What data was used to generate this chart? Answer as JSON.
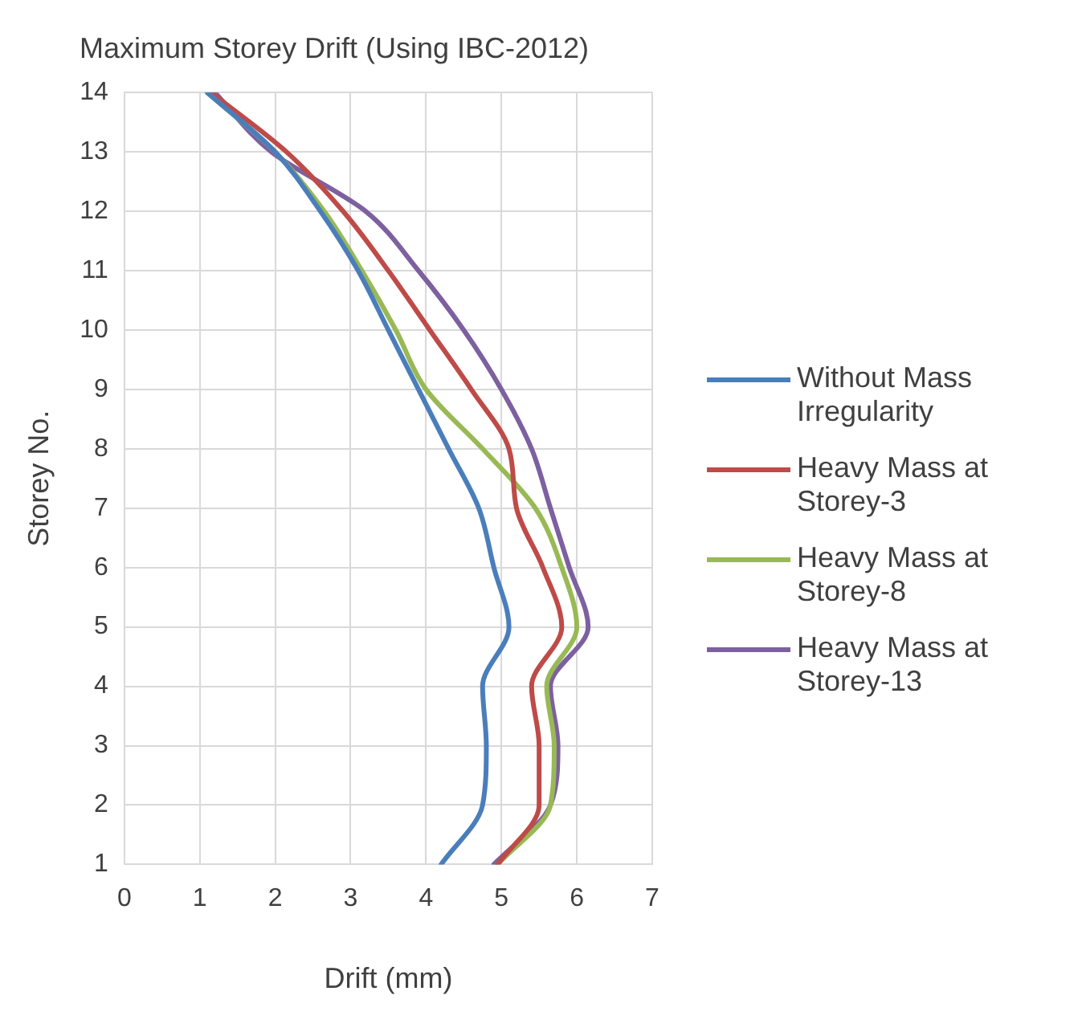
{
  "chart_data": {
    "type": "line",
    "title": "Maximum Storey Drift (Using IBC-2012)",
    "xlabel": "Drift (mm)",
    "ylabel": "Storey No.",
    "xlim": [
      0,
      7
    ],
    "xticks": [
      0,
      1,
      2,
      3,
      4,
      5,
      6,
      7
    ],
    "ylim": [
      1,
      14
    ],
    "yticks": [
      1,
      2,
      3,
      4,
      5,
      6,
      7,
      8,
      9,
      10,
      11,
      12,
      13,
      14
    ],
    "grid": true,
    "legend": "right",
    "marker": "none",
    "line_style": "solid",
    "series": [
      {
        "name": "Without Mass Irregularity",
        "color": "#4a7ebb",
        "x": [
          4.2,
          4.75,
          4.8,
          4.75,
          5.1,
          4.9,
          4.7,
          4.3,
          3.9,
          3.5,
          3.1,
          2.6,
          2.0,
          1.1
        ],
        "values": [
          1,
          2,
          3,
          4,
          5,
          6,
          7,
          8,
          9,
          10,
          11,
          12,
          13,
          14
        ]
      },
      {
        "name": "Heavy Mass at Storey-3",
        "color": "#be4b48",
        "x": [
          4.95,
          5.5,
          5.5,
          5.4,
          5.8,
          5.55,
          5.2,
          5.1,
          4.6,
          4.05,
          3.5,
          2.9,
          2.15,
          1.15
        ],
        "values": [
          1,
          2,
          3,
          4,
          5,
          6,
          7,
          8,
          9,
          10,
          11,
          12,
          13,
          14
        ]
      },
      {
        "name": "Heavy Mass at Storey-8",
        "color": "#98b954",
        "x": [
          4.95,
          5.65,
          5.7,
          5.6,
          6.0,
          5.8,
          5.45,
          4.75,
          4.0,
          3.6,
          3.15,
          2.65,
          2.0,
          1.1
        ],
        "values": [
          1,
          2,
          3,
          4,
          5,
          6,
          7,
          8,
          9,
          10,
          11,
          12,
          13,
          14
        ]
      },
      {
        "name": "Heavy Mass at Storey-13",
        "color": "#7d60a0",
        "x": [
          4.9,
          5.65,
          5.75,
          5.65,
          6.15,
          5.9,
          5.65,
          5.4,
          5.0,
          4.5,
          3.9,
          3.2,
          1.95,
          1.2
        ],
        "values": [
          1,
          2,
          3,
          4,
          5,
          6,
          7,
          8,
          9,
          10,
          11,
          12,
          13,
          14
        ]
      }
    ]
  }
}
